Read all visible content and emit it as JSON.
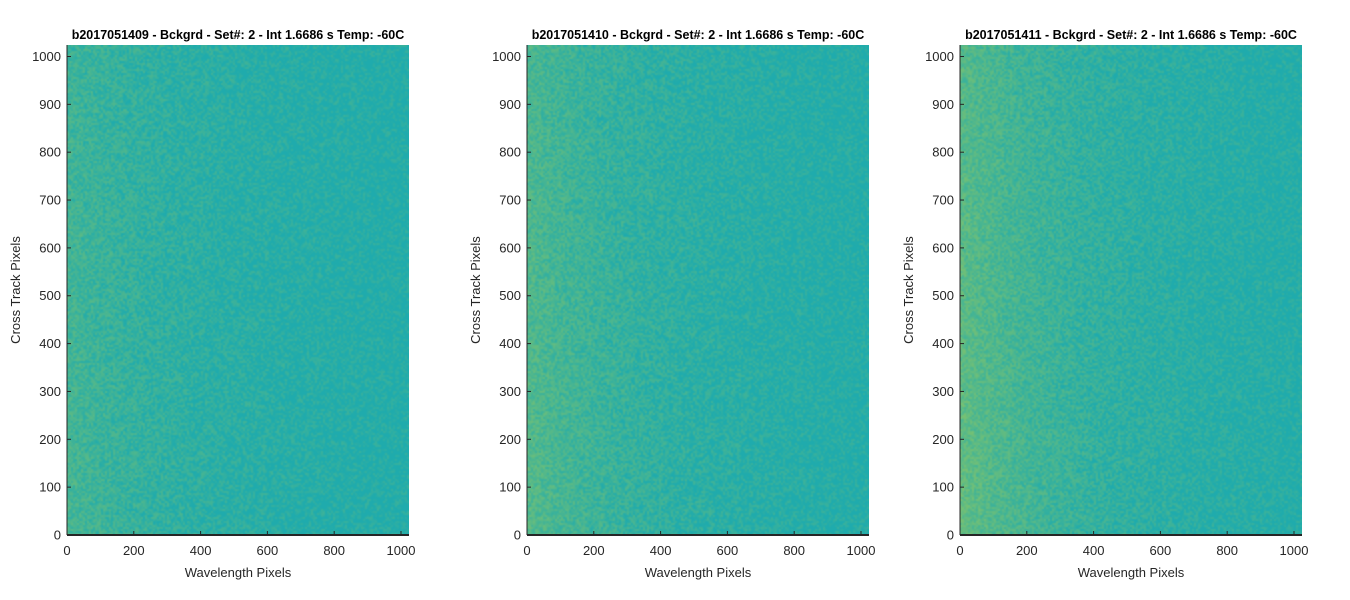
{
  "colors": {
    "heatmap_base": "#1FABAD",
    "heatmap_warm": "#7FC36E",
    "axis": "#262626",
    "title": "#000000"
  },
  "chart_data": [
    {
      "type": "heatmap",
      "title": "b2017051409 - Bckgrd - Set#: 2 - Int 1.6686 s Temp: -60C",
      "xlabel": "Wavelength Pixels",
      "ylabel": "Cross Track Pixels",
      "xlim": [
        0,
        1024
      ],
      "ylim": [
        0,
        1024
      ],
      "xticks": [
        0,
        200,
        400,
        600,
        800,
        1000
      ],
      "yticks": [
        0,
        100,
        200,
        300,
        400,
        500,
        600,
        700,
        800,
        900,
        1000
      ],
      "colormap": "parula",
      "grid": false,
      "warmth_left_edge": 0.35
    },
    {
      "type": "heatmap",
      "title": "b2017051410 - Bckgrd - Set#: 2 - Int 1.6686 s Temp: -60C",
      "xlabel": "Wavelength Pixels",
      "ylabel": "Cross Track Pixels",
      "xlim": [
        0,
        1024
      ],
      "ylim": [
        0,
        1024
      ],
      "xticks": [
        0,
        200,
        400,
        600,
        800,
        1000
      ],
      "yticks": [
        0,
        100,
        200,
        300,
        400,
        500,
        600,
        700,
        800,
        900,
        1000
      ],
      "colormap": "parula",
      "grid": false,
      "warmth_left_edge": 0.5
    },
    {
      "type": "heatmap",
      "title": "b2017051411 - Bckgrd - Set#: 2 - Int 1.6686 s Temp: -60C",
      "xlabel": "Wavelength Pixels",
      "ylabel": "Cross Track Pixels",
      "xlim": [
        0,
        1024
      ],
      "ylim": [
        0,
        1024
      ],
      "xticks": [
        0,
        200,
        400,
        600,
        800,
        1000
      ],
      "yticks": [
        0,
        100,
        200,
        300,
        400,
        500,
        600,
        700,
        800,
        900,
        1000
      ],
      "colormap": "parula",
      "grid": false,
      "warmth_left_edge": 0.65
    }
  ]
}
